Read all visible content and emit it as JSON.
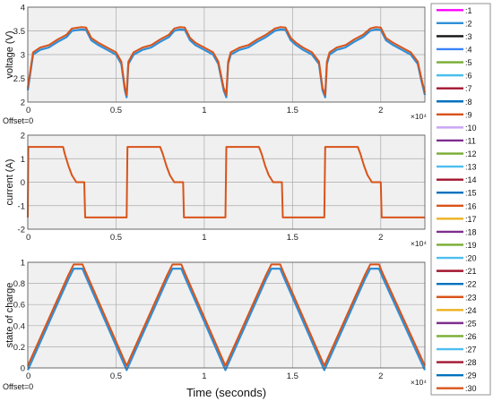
{
  "chart_data": [
    {
      "type": "line",
      "ylabel": "voltage (V)",
      "xlim": [
        0,
        22500
      ],
      "ylim": [
        2,
        4
      ],
      "xticks": [
        0,
        5000,
        10000,
        15000,
        20000
      ],
      "xtick_labels": [
        "0",
        "0.5",
        "1",
        "1.5",
        "2"
      ],
      "yticks": [
        2,
        2.5,
        3,
        3.5,
        4
      ],
      "ytick_labels": [
        "2",
        "2.5",
        "3",
        "3.5",
        "4"
      ],
      "exponent_label": "×10⁴",
      "offset_label": "Offset=0",
      "grid": true,
      "x": [
        0,
        300,
        700,
        1200,
        1700,
        2200,
        2500,
        3000,
        3300,
        3600,
        4000,
        4500,
        5000,
        5300,
        5500,
        5600,
        5700,
        6000,
        6500,
        7000,
        7500,
        8000,
        8300,
        8600,
        8900,
        9200,
        9500,
        10000,
        10500,
        10800,
        11100,
        11250,
        11350,
        11500,
        12000,
        12500,
        13000,
        13500,
        14000,
        14300,
        14600,
        14900,
        15200,
        15600,
        16100,
        16500,
        16700,
        16850,
        16950,
        17100,
        17500,
        18000,
        18500,
        19000,
        19400,
        19700,
        20000,
        20300,
        20700,
        21200,
        21700,
        22100,
        22300,
        22500
      ],
      "values": [
        2.3,
        3.05,
        3.15,
        3.2,
        3.32,
        3.42,
        3.55,
        3.58,
        3.57,
        3.35,
        3.25,
        3.15,
        3.05,
        2.85,
        2.3,
        2.15,
        2.85,
        3.05,
        3.15,
        3.2,
        3.32,
        3.42,
        3.55,
        3.58,
        3.57,
        3.35,
        3.25,
        3.15,
        3.05,
        2.85,
        2.3,
        2.15,
        2.85,
        3.05,
        3.15,
        3.2,
        3.32,
        3.42,
        3.55,
        3.58,
        3.57,
        3.35,
        3.25,
        3.15,
        3.05,
        2.85,
        2.3,
        2.15,
        2.85,
        3.05,
        3.15,
        3.2,
        3.32,
        3.42,
        3.55,
        3.58,
        3.57,
        3.35,
        3.25,
        3.15,
        3.05,
        2.85,
        2.5,
        2.2
      ],
      "band_offset": -0.05
    },
    {
      "type": "line",
      "ylabel": "current (A)",
      "xlim": [
        0,
        22500
      ],
      "ylim": [
        -2,
        2
      ],
      "xticks": [
        0,
        5000,
        10000,
        15000,
        20000
      ],
      "xtick_labels": [
        "0",
        "0.5",
        "1",
        "1.5",
        "2"
      ],
      "yticks": [
        -2,
        -1,
        0,
        1,
        2
      ],
      "ytick_labels": [
        "-2",
        "-1",
        "0",
        "1",
        "2"
      ],
      "exponent_label": "×10⁴",
      "grid": true,
      "x": [
        0,
        30,
        2000,
        2100,
        2300,
        2500,
        2750,
        3200,
        3250,
        5600,
        5650,
        7500,
        7650,
        7850,
        8050,
        8300,
        8800,
        8850,
        11200,
        11250,
        13100,
        13250,
        13450,
        13650,
        13900,
        14400,
        14450,
        16800,
        16850,
        18700,
        18850,
        19050,
        19250,
        19500,
        20000,
        20050,
        22500
      ],
      "values": [
        -1.5,
        1.5,
        1.5,
        1.2,
        0.7,
        0.3,
        0,
        0,
        -1.5,
        -1.5,
        1.5,
        1.5,
        1.2,
        0.7,
        0.3,
        0,
        0,
        -1.5,
        -1.5,
        1.5,
        1.5,
        1.2,
        0.7,
        0.3,
        0,
        0,
        -1.5,
        -1.5,
        1.5,
        1.5,
        1.2,
        0.7,
        0.3,
        0,
        0,
        -1.5,
        -1.5
      ]
    },
    {
      "type": "line",
      "ylabel": "state of charge",
      "xlabel": "Time (seconds)",
      "xlim": [
        0,
        22500
      ],
      "ylim": [
        0,
        1
      ],
      "xticks": [
        0,
        5000,
        10000,
        15000,
        20000
      ],
      "xtick_labels": [
        "0",
        "0.5",
        "1",
        "1.5",
        "2"
      ],
      "yticks": [
        0,
        0.2,
        0.4,
        0.6,
        0.8,
        1
      ],
      "ytick_labels": [
        "0",
        "0.2",
        "0.4",
        "0.6",
        "0.8",
        "1"
      ],
      "exponent_label": "×10⁴",
      "offset_label": "Offset=0",
      "grid": true,
      "x": [
        0,
        2300,
        2600,
        3100,
        3300,
        5600,
        7900,
        8200,
        8700,
        8900,
        11200,
        13500,
        13800,
        14300,
        14500,
        16800,
        19100,
        19400,
        19900,
        20100,
        22500
      ],
      "values": [
        0.02,
        0.88,
        0.98,
        0.98,
        0.9,
        0.02,
        0.88,
        0.98,
        0.98,
        0.9,
        0.02,
        0.88,
        0.98,
        0.98,
        0.9,
        0.02,
        0.88,
        0.98,
        0.98,
        0.9,
        0.02
      ],
      "band_offset": -0.04
    }
  ],
  "legend": {
    "placement": "right",
    "entries": [
      {
        "label": ":1",
        "color": "#ff00ff"
      },
      {
        "label": ":2",
        "color": "#2e8fd8"
      },
      {
        "label": ":3",
        "color": "#111111"
      },
      {
        "label": ":4",
        "color": "#3b82f6"
      },
      {
        "label": ":5",
        "color": "#77ac30"
      },
      {
        "label": ":6",
        "color": "#4dbeee"
      },
      {
        "label": ":7",
        "color": "#a2142f"
      },
      {
        "label": ":8",
        "color": "#0072bd"
      },
      {
        "label": ":9",
        "color": "#d95319"
      },
      {
        "label": ":10",
        "color": "#c9a6f5"
      },
      {
        "label": ":11",
        "color": "#7e2f8e"
      },
      {
        "label": ":12",
        "color": "#77ac30"
      },
      {
        "label": ":13",
        "color": "#4dbeee"
      },
      {
        "label": ":14",
        "color": "#a2142f"
      },
      {
        "label": ":15",
        "color": "#0072bd"
      },
      {
        "label": ":16",
        "color": "#d95319"
      },
      {
        "label": ":17",
        "color": "#edb120"
      },
      {
        "label": ":18",
        "color": "#7e2f8e"
      },
      {
        "label": ":19",
        "color": "#77ac30"
      },
      {
        "label": ":20",
        "color": "#4dbeee"
      },
      {
        "label": ":21",
        "color": "#a2142f"
      },
      {
        "label": ":22",
        "color": "#0072bd"
      },
      {
        "label": ":23",
        "color": "#d95319"
      },
      {
        "label": ":24",
        "color": "#edb120"
      },
      {
        "label": ":25",
        "color": "#7e2f8e"
      },
      {
        "label": ":26",
        "color": "#77ac30"
      },
      {
        "label": ":27",
        "color": "#4dbeee"
      },
      {
        "label": ":28",
        "color": "#a2142f"
      },
      {
        "label": ":29",
        "color": "#0072bd"
      },
      {
        "label": ":30",
        "color": "#d95319"
      }
    ]
  },
  "colors": {
    "plot_background": "#f0f0f0",
    "grid": "#aaaaaa",
    "main_line": "#d95319",
    "under_line": "#2e8fd8"
  }
}
